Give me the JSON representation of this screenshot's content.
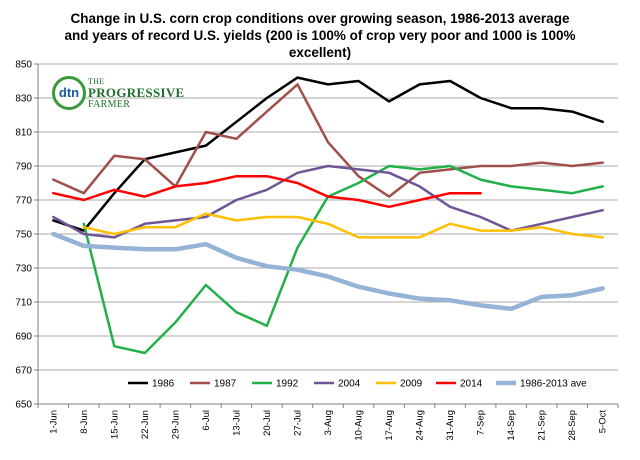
{
  "chart_data": {
    "type": "line",
    "title": "Change in U.S. corn crop conditions over growing season, 1986-2013 average and years of record U.S. yields (200 is 100% of crop very poor and 1000 is 100% excellent)",
    "xlabel": "",
    "ylabel": "",
    "ylim": [
      650,
      850
    ],
    "yticks": [
      650,
      670,
      690,
      710,
      730,
      750,
      770,
      790,
      810,
      830,
      850
    ],
    "categories": [
      "1-Jun",
      "8-Jun",
      "15-Jun",
      "22-Jun",
      "29-Jun",
      "6-Jul",
      "13-Jul",
      "20-Jul",
      "27-Jul",
      "3-Aug",
      "10-Aug",
      "17-Aug",
      "24-Aug",
      "31-Aug",
      "7-Sep",
      "14-Sep",
      "21-Sep",
      "28-Sep",
      "5-Oct"
    ],
    "grid": true,
    "legend_position": "bottom",
    "series": [
      {
        "name": "1986",
        "color": "#000000",
        "width": 2.5,
        "values": [
          758,
          752,
          774,
          794,
          798,
          802,
          816,
          830,
          842,
          838,
          840,
          828,
          838,
          840,
          830,
          824,
          824,
          822,
          816
        ]
      },
      {
        "name": "1987",
        "color": "#a0504a",
        "width": 2.5,
        "values": [
          782,
          774,
          796,
          794,
          778,
          810,
          806,
          822,
          838,
          804,
          784,
          772,
          786,
          788,
          790,
          790,
          792,
          790,
          792
        ]
      },
      {
        "name": "1992",
        "color": "#22b04a",
        "width": 2.5,
        "values": [
          null,
          756,
          684,
          680,
          698,
          720,
          704,
          696,
          742,
          772,
          780,
          790,
          788,
          790,
          782,
          778,
          776,
          774,
          778
        ]
      },
      {
        "name": "2004",
        "color": "#6f5596",
        "width": 2.5,
        "values": [
          760,
          750,
          748,
          756,
          758,
          760,
          770,
          776,
          786,
          790,
          788,
          786,
          778,
          766,
          760,
          752,
          756,
          760,
          764
        ]
      },
      {
        "name": "2009",
        "color": "#ffc000",
        "width": 2.5,
        "values": [
          null,
          754,
          750,
          754,
          754,
          762,
          758,
          760,
          760,
          756,
          748,
          748,
          748,
          756,
          752,
          752,
          754,
          750,
          748
        ]
      },
      {
        "name": "2014",
        "color": "#ff0000",
        "width": 2.5,
        "values": [
          774,
          770,
          776,
          772,
          778,
          780,
          784,
          784,
          780,
          772,
          770,
          766,
          770,
          774,
          774,
          null,
          null,
          null,
          null
        ]
      },
      {
        "name": "1986-2013 ave",
        "color": "#95b3d7",
        "width": 4.5,
        "values": [
          750,
          743,
          742,
          741,
          741,
          744,
          736,
          731,
          729,
          725,
          719,
          715,
          712,
          711,
          708,
          706,
          713,
          714,
          718
        ]
      }
    ]
  },
  "logo": {
    "circle_text": "dtn",
    "line1": "THE",
    "line2": "PROGRESSIVE",
    "line3": "FARMER"
  }
}
